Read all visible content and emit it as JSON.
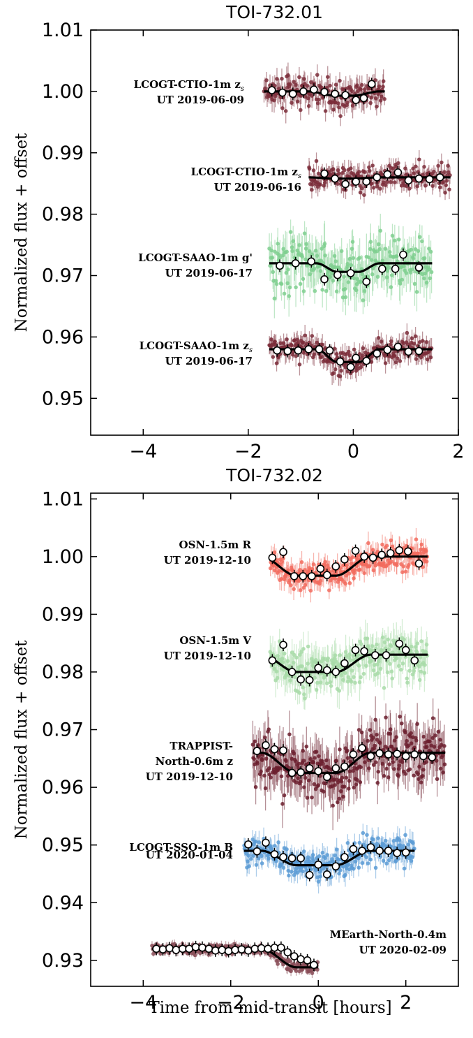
{
  "chart_data": [
    {
      "type": "scatter",
      "title": "TOI-732.01",
      "ylabel": "Normalized flux + offset",
      "xlabel": "",
      "xlim": [
        -5.0,
        2.0
      ],
      "ylim": [
        0.944,
        1.01
      ],
      "xticks": [
        -4,
        -2,
        0,
        2
      ],
      "xtick_labels": [
        "−4",
        "−2",
        "0",
        "2"
      ],
      "yticks": [
        0.95,
        0.96,
        0.97,
        0.98,
        0.99,
        1.0,
        1.01
      ],
      "ytick_labels": [
        "0.95",
        "0.96",
        "0.97",
        "0.98",
        "0.99",
        "1.00",
        "1.01"
      ],
      "series": [
        {
          "name": "LCOGT-CTIO-1m z_s",
          "label_lines": [
            "LCOGT-CTIO-1m z",
            "UT 2019-06-09"
          ],
          "subscript": "s",
          "color": "#7b2d3a",
          "baseline": 1.0,
          "x_range": [
            -1.7,
            0.6
          ],
          "model": {
            "t1": -0.6,
            "t2": 0.25,
            "depth": 0.0007,
            "ramp": 0.25
          },
          "scatter": 0.0022,
          "binned": {
            "x": [
              -1.55,
              -1.35,
              -1.15,
              -0.95,
              -0.75,
              -0.55,
              -0.35,
              -0.15,
              0.05,
              0.2,
              0.35
            ],
            "y": [
              1.0002,
              0.9998,
              0.9996,
              1.0,
              1.0003,
              0.9999,
              0.9996,
              0.9994,
              0.9986,
              0.9989,
              1.0012
            ]
          }
        },
        {
          "name": "LCOGT-CTIO-1m z_s",
          "label_lines": [
            "LCOGT-CTIO-1m z",
            "UT 2019-06-16"
          ],
          "subscript": "s",
          "color": "#7b2d3a",
          "baseline": 0.986,
          "x_range": [
            -0.85,
            1.85
          ],
          "model": {
            "t1": -0.6,
            "t2": 0.25,
            "depth": 0.0002,
            "ramp": 0.25
          },
          "scatter": 0.0018,
          "binned": {
            "x": [
              -0.55,
              -0.35,
              -0.15,
              0.05,
              0.25,
              0.45,
              0.65,
              0.85,
              1.05,
              1.25,
              1.45,
              1.65
            ],
            "y": [
              0.9866,
              0.9858,
              0.9849,
              0.9853,
              0.9853,
              0.986,
              0.9865,
              0.9868,
              0.9855,
              0.9858,
              0.9857,
              0.986
            ]
          }
        },
        {
          "name": "LCOGT-SAAO-1m g'",
          "label_lines": [
            "LCOGT-SAAO-1m g'",
            "UT 2019-06-17"
          ],
          "subscript": "",
          "color": "#7fcf8f",
          "baseline": 0.972,
          "x_range": [
            -1.6,
            1.5
          ],
          "model": {
            "t1": -0.5,
            "t2": 0.3,
            "depth": 0.0014,
            "ramp": 0.2
          },
          "scatter": 0.004,
          "binned": {
            "x": [
              -1.4,
              -1.1,
              -0.8,
              -0.55,
              -0.3,
              -0.05,
              0.25,
              0.55,
              0.8,
              0.95,
              1.25
            ],
            "y": [
              0.9716,
              0.972,
              0.9723,
              0.9694,
              0.9701,
              0.9704,
              0.969,
              0.9711,
              0.9711,
              0.9734,
              0.9713
            ]
          }
        },
        {
          "name": "LCOGT-SAAO-1m z_s",
          "label_lines": [
            "LCOGT-SAAO-1m z",
            "UT 2019-06-17"
          ],
          "subscript": "s",
          "color": "#7b2d3a",
          "baseline": 0.958,
          "x_range": [
            -1.6,
            1.5
          ],
          "model": {
            "t1": -0.5,
            "t2": 0.3,
            "depth": 0.0021,
            "ramp": 0.2
          },
          "scatter": 0.002,
          "binned": {
            "x": [
              -1.45,
              -1.25,
              -1.05,
              -0.85,
              -0.65,
              -0.45,
              -0.25,
              -0.05,
              0.05,
              0.25,
              0.45,
              0.65,
              0.85,
              1.05,
              1.25
            ],
            "y": [
              0.9578,
              0.9577,
              0.9578,
              0.958,
              0.958,
              0.9578,
              0.956,
              0.9551,
              0.9566,
              0.9561,
              0.9573,
              0.9579,
              0.9584,
              0.9576,
              0.9577
            ]
          }
        }
      ]
    },
    {
      "type": "scatter",
      "title": "TOI-732.02",
      "ylabel": "Normalized flux + offset",
      "xlabel": "Time from mid-transit [hours]",
      "xlim": [
        -5.2,
        3.2
      ],
      "ylim": [
        0.9255,
        1.011
      ],
      "xticks": [
        -4,
        -2,
        0,
        2
      ],
      "xtick_labels": [
        "−4",
        "−2",
        "0",
        "2"
      ],
      "yticks": [
        0.93,
        0.94,
        0.95,
        0.96,
        0.97,
        0.98,
        0.99,
        1.0,
        1.01
      ],
      "ytick_labels": [
        "0.93",
        "0.94",
        "0.95",
        "0.96",
        "0.97",
        "0.98",
        "0.99",
        "1.00",
        "1.01"
      ],
      "series": [
        {
          "name": "OSN-1.5m R",
          "label_lines": [
            "OSN-1.5m R",
            "UT 2019-12-10"
          ],
          "subscript": "",
          "color": "#f26b5e",
          "baseline": 1.0,
          "x_range": [
            -1.1,
            2.5
          ],
          "model": {
            "t1": -0.9,
            "t2": 0.8,
            "depth": 0.0033,
            "ramp": 0.4
          },
          "scatter": 0.0022,
          "binned": {
            "x": [
              -1.05,
              -0.8,
              -0.55,
              -0.35,
              -0.15,
              0.05,
              0.2,
              0.4,
              0.6,
              0.85,
              1.05,
              1.25,
              1.45,
              1.65,
              1.85,
              2.05,
              2.3
            ],
            "y": [
              0.9998,
              1.0008,
              0.9966,
              0.9966,
              0.9966,
              0.9979,
              0.9968,
              0.9983,
              0.9995,
              1.001,
              1.0,
              0.9998,
              1.0003,
              1.0006,
              1.0011,
              1.0009,
              0.9988
            ]
          }
        },
        {
          "name": "OSN-1.5m V",
          "label_lines": [
            "OSN-1.5m V",
            "UT 2019-12-10"
          ],
          "subscript": "",
          "color": "#a8dba8",
          "baseline": 0.983,
          "x_range": [
            -1.1,
            2.5
          ],
          "model": {
            "t1": -0.9,
            "t2": 0.8,
            "depth": 0.003,
            "ramp": 0.4
          },
          "scatter": 0.0035,
          "binned": {
            "x": [
              -1.05,
              -0.8,
              -0.6,
              -0.4,
              -0.2,
              0.0,
              0.2,
              0.4,
              0.6,
              0.85,
              1.05,
              1.3,
              1.55,
              1.85,
              2.0,
              2.2
            ],
            "y": [
              0.982,
              0.9847,
              0.98,
              0.9787,
              0.9786,
              0.9807,
              0.9803,
              0.98,
              0.9815,
              0.9838,
              0.9836,
              0.9829,
              0.9829,
              0.9849,
              0.9838,
              0.982
            ]
          }
        },
        {
          "name": "TRAPPIST-North-0.6m z",
          "label_lines": [
            "TRAPPIST-",
            "North-0.6m z",
            "UT 2019-12-10"
          ],
          "subscript": "",
          "color": "#6b1f2e",
          "baseline": 0.966,
          "x_range": [
            -1.5,
            2.9
          ],
          "model": {
            "t1": -0.9,
            "t2": 0.8,
            "depth": 0.0035,
            "ramp": 0.4
          },
          "scatter": 0.0045,
          "binned": {
            "x": [
              -1.4,
              -1.2,
              -1.0,
              -0.8,
              -0.6,
              -0.4,
              -0.2,
              0.0,
              0.2,
              0.4,
              0.6,
              0.8,
              1.0,
              1.2,
              1.4,
              1.6,
              1.8,
              2.0,
              2.2,
              2.4,
              2.6
            ],
            "y": [
              0.9663,
              0.9673,
              0.9666,
              0.9664,
              0.9625,
              0.9626,
              0.9633,
              0.9628,
              0.9618,
              0.9633,
              0.9636,
              0.9657,
              0.9668,
              0.9654,
              0.9659,
              0.9657,
              0.9658,
              0.9654,
              0.9657,
              0.9654,
              0.9652
            ]
          }
        },
        {
          "name": "LCOGT-SSO-1m B",
          "label_lines": [
            "LCOGT-SSO-1m B",
            "UT 2020-01-04"
          ],
          "subscript": "",
          "color": "#5b9bd5",
          "baseline": 0.949,
          "x_range": [
            -1.7,
            2.2
          ],
          "model": {
            "t1": -0.9,
            "t2": 0.8,
            "depth": 0.0025,
            "ramp": 0.4
          },
          "scatter": 0.0022,
          "binned": {
            "x": [
              -1.6,
              -1.4,
              -1.2,
              -1.0,
              -0.8,
              -0.6,
              -0.4,
              -0.2,
              0.0,
              0.2,
              0.4,
              0.6,
              0.8,
              1.0,
              1.2,
              1.4,
              1.6,
              1.8,
              2.0
            ],
            "y": [
              0.9501,
              0.9489,
              0.9504,
              0.9484,
              0.9479,
              0.9477,
              0.9477,
              0.9448,
              0.9466,
              0.9449,
              0.9463,
              0.9479,
              0.9493,
              0.949,
              0.9496,
              0.949,
              0.949,
              0.9486,
              0.9487
            ]
          }
        },
        {
          "name": "MEarth-North-0.4m",
          "label_lines": [
            "MEarth-North-0.4m",
            "UT 2020-02-09"
          ],
          "subscript": "",
          "color": "#8a4d58",
          "baseline": 0.932,
          "x_range": [
            -3.8,
            0.0
          ],
          "model": {
            "t1": -0.9,
            "t2": 0.8,
            "depth": 0.0032,
            "ramp": 0.4
          },
          "scatter": 0.0009,
          "binned": {
            "x": [
              -3.7,
              -3.55,
              -3.4,
              -3.25,
              -3.1,
              -2.95,
              -2.8,
              -2.65,
              -2.5,
              -2.35,
              -2.2,
              -2.05,
              -1.9,
              -1.75,
              -1.6,
              -1.45,
              -1.3,
              -1.15,
              -1.0,
              -0.85,
              -0.7,
              -0.55,
              -0.4,
              -0.25,
              -0.1
            ],
            "y": [
              0.932,
              0.9319,
              0.9321,
              0.9318,
              0.932,
              0.932,
              0.9323,
              0.9322,
              0.932,
              0.9317,
              0.9318,
              0.9316,
              0.9318,
              0.9319,
              0.9317,
              0.932,
              0.9321,
              0.932,
              0.9322,
              0.9322,
              0.9314,
              0.9307,
              0.9302,
              0.93,
              0.9292
            ]
          }
        }
      ]
    }
  ]
}
